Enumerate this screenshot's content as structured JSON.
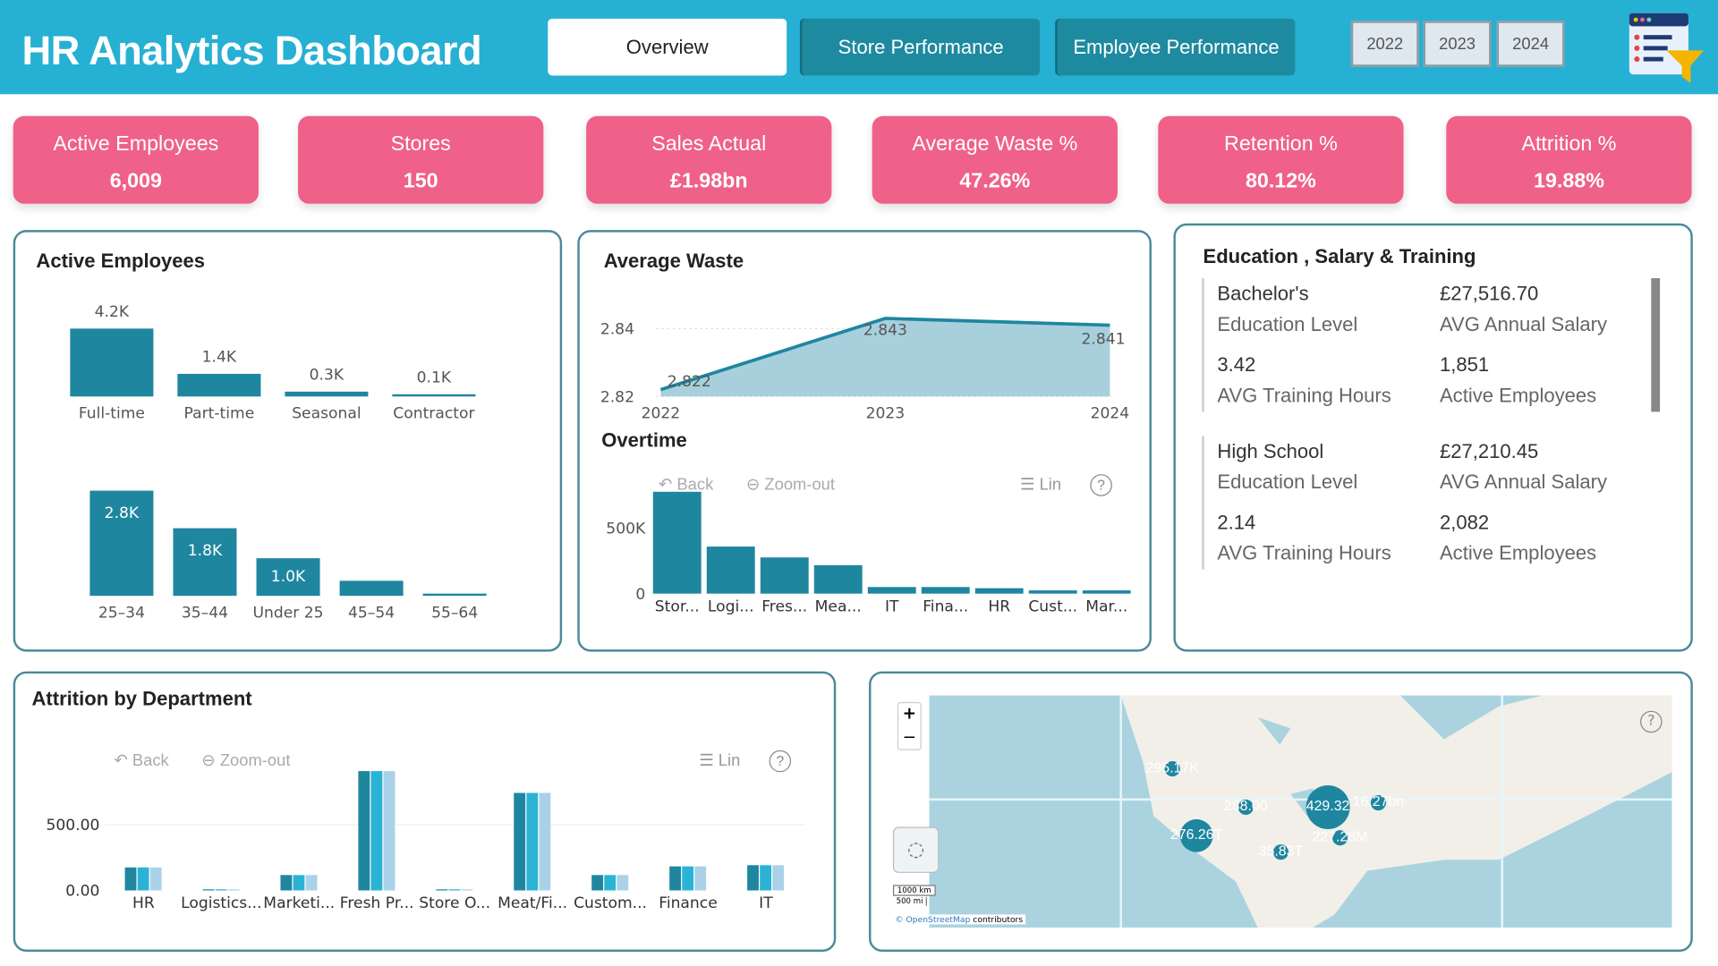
{
  "header": {
    "title": "HR Analytics Dashboard",
    "tabs": [
      {
        "label": "Overview",
        "active": true
      },
      {
        "label": "Store Performance",
        "active": false
      },
      {
        "label": "Employee Performance",
        "active": false
      }
    ],
    "years": [
      "2022",
      "2023",
      "2024"
    ],
    "logo_icon": "report-filter-icon"
  },
  "kpis": [
    {
      "label": "Active Employees",
      "value": "6,009"
    },
    {
      "label": "Stores",
      "value": "150"
    },
    {
      "label": "Sales Actual",
      "value": "£1.98bn"
    },
    {
      "label": "Average Waste %",
      "value": "47.26%"
    },
    {
      "label": "Retention %",
      "value": "80.12%"
    },
    {
      "label": "Attrition %",
      "value": "19.88%"
    }
  ],
  "colors": {
    "header": "#26b0d3",
    "kpi": "#ef6188",
    "bar": "#1f86a0",
    "bar2": "#2bb3d6",
    "bar3": "#a9d2e8",
    "area": "#a7d0dc"
  },
  "active_employees": {
    "title": "Active Employees"
  },
  "average_waste": {
    "title": "Average Waste"
  },
  "overtime": {
    "title": "Overtime",
    "toolbar": {
      "back": "Back",
      "zoom_out": "Zoom-out",
      "lin": "Lin"
    }
  },
  "education": {
    "title": "Education , Salary & Training",
    "items": [
      {
        "level": "Bachelor's",
        "level_label": "Education Level",
        "salary": "£27,516.70",
        "salary_label": "AVG Annual Salary",
        "hours": "3.42",
        "hours_label": "AVG Training Hours",
        "employees": "1,851",
        "employees_label": "Active Employees"
      },
      {
        "level": "High School",
        "level_label": "Education Level",
        "salary": "£27,210.45",
        "salary_label": "AVG Annual Salary",
        "hours": "2.14",
        "hours_label": "AVG Training Hours",
        "employees": "2,082",
        "employees_label": "Active Employees"
      }
    ]
  },
  "attrition": {
    "title": "Attrition by Department",
    "toolbar": {
      "back": "Back",
      "zoom_out": "Zoom-out",
      "lin": "Lin"
    }
  },
  "map": {
    "zoom_in": "+",
    "zoom_out": "−",
    "scale_km": "1000 km",
    "scale_mi": "500 mi",
    "attribution_link": "© OpenStreetMap",
    "attribution": "contributors",
    "bubbles": [
      {
        "label": "295.17K",
        "size": "small"
      },
      {
        "label": "288.00",
        "size": "small"
      },
      {
        "label": "429.32",
        "size": "large"
      },
      {
        "label": "16.27bn",
        "size": "small"
      },
      {
        "label": "276.26T",
        "size": "medium"
      },
      {
        "label": "227.28M",
        "size": "small"
      },
      {
        "label": "35.83T",
        "size": "small"
      }
    ]
  },
  "chart_data": [
    {
      "type": "bar",
      "id": "employment-type",
      "categories": [
        "Full-time",
        "Part-time",
        "Seasonal",
        "Contractor"
      ],
      "values": [
        4200,
        1400,
        300,
        100
      ],
      "data_labels": [
        "4.2K",
        "1.4K",
        "0.3K",
        "0.1K"
      ]
    },
    {
      "type": "bar",
      "id": "age-group",
      "categories": [
        "25–34",
        "35–44",
        "Under 25",
        "45–54",
        "55–64"
      ],
      "values": [
        2800,
        1800,
        1000,
        400,
        50
      ],
      "data_labels": [
        "2.8K",
        "1.8K",
        "1.0K",
        "",
        ""
      ]
    },
    {
      "type": "area",
      "id": "average-waste",
      "title": "Average Waste",
      "x": [
        "2022",
        "2023",
        "2024"
      ],
      "values": [
        2.822,
        2.843,
        2.841
      ],
      "data_labels": [
        "2.822",
        "2.843",
        "2.841"
      ],
      "yticks": [
        "2.82",
        "2.84"
      ],
      "ylim": [
        2.82,
        2.85
      ]
    },
    {
      "type": "bar",
      "id": "overtime",
      "title": "Overtime",
      "categories": [
        "Stor...",
        "Logi...",
        "Fres...",
        "Mea...",
        "IT",
        "Fina...",
        "HR",
        "Cust...",
        "Mar..."
      ],
      "values": [
        788000,
        364000,
        280000,
        220000,
        51000,
        51000,
        42000,
        25000,
        25000
      ],
      "yticks": [
        "0",
        "500K"
      ],
      "ylim": [
        0,
        800000
      ]
    },
    {
      "type": "bar",
      "id": "attrition-by-department",
      "title": "Attrition by Department",
      "categories": [
        "HR",
        "Logistics...",
        "Marketi...",
        "Fresh Pr...",
        "Store O...",
        "Meat/Fi...",
        "Custom...",
        "Finance",
        "IT"
      ],
      "series": [
        {
          "values": [
            175,
            0,
            117,
            908,
            0,
            742,
            117,
            183,
            192
          ]
        },
        {
          "values": [
            175,
            0,
            117,
            908,
            0,
            742,
            117,
            183,
            192
          ]
        },
        {
          "values": [
            175,
            0,
            117,
            908,
            0,
            742,
            117,
            183,
            192
          ]
        }
      ],
      "yticks": [
        "0.00",
        "500.00"
      ],
      "ylim": [
        0,
        1000
      ]
    }
  ]
}
